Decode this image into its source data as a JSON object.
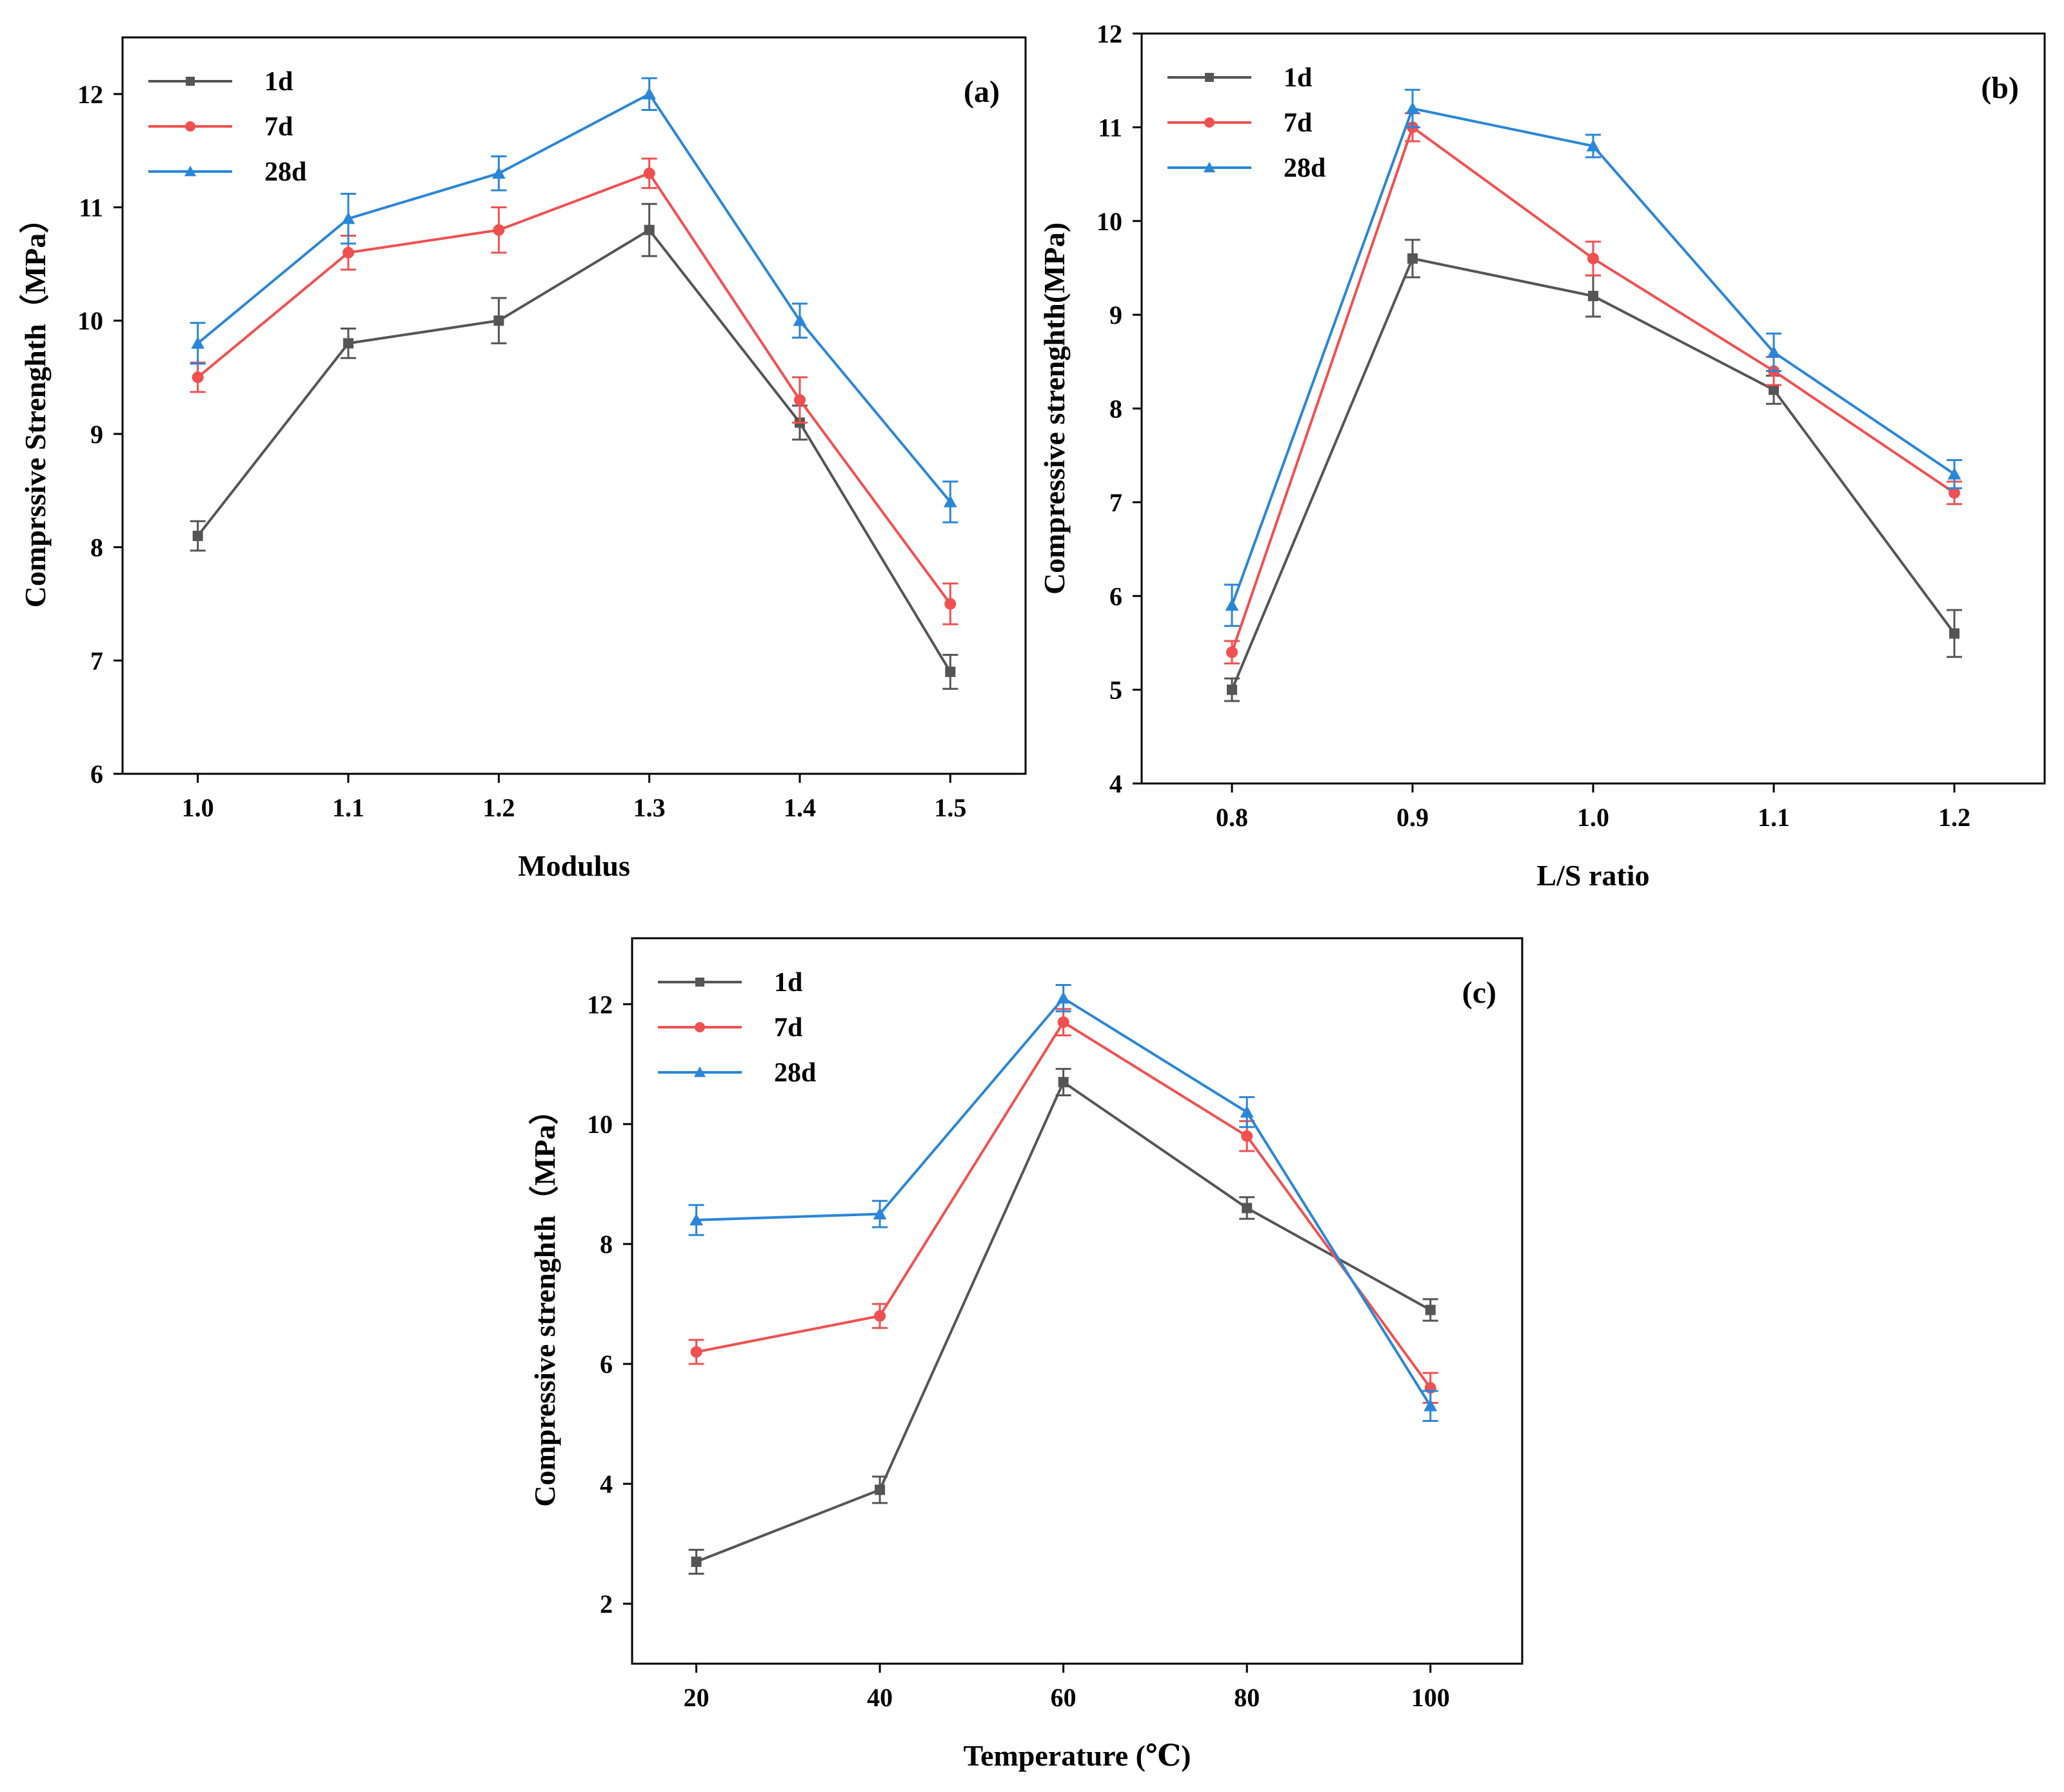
{
  "chart_data": [
    {
      "id": "a",
      "type": "line",
      "panel_label": "(a)",
      "xlabel": "Modulus",
      "ylabel": "Comprssive Strenghth（MPa）",
      "x": [
        1.0,
        1.1,
        1.2,
        1.3,
        1.4,
        1.5
      ],
      "x_tick_labels": [
        "1.0",
        "1.1",
        "1.2",
        "1.3",
        "1.4",
        "1.5"
      ],
      "xlim": [
        0.95,
        1.55
      ],
      "ylim": [
        6,
        12.5
      ],
      "y_ticks": [
        6,
        7,
        8,
        9,
        10,
        11,
        12
      ],
      "legend_position": "top-left",
      "series": [
        {
          "name": "1d",
          "color": "#555555",
          "marker": "square",
          "values": [
            8.1,
            9.8,
            10.0,
            10.8,
            9.1,
            6.9
          ],
          "errors": [
            0.13,
            0.13,
            0.2,
            0.23,
            0.15,
            0.15
          ]
        },
        {
          "name": "7d",
          "color": "#f05050",
          "marker": "circle",
          "values": [
            9.5,
            10.6,
            10.8,
            11.3,
            9.3,
            7.5
          ],
          "errors": [
            0.13,
            0.15,
            0.2,
            0.13,
            0.2,
            0.18
          ]
        },
        {
          "name": "28d",
          "color": "#2a86d8",
          "marker": "triangle",
          "values": [
            9.8,
            10.9,
            11.3,
            12.0,
            10.0,
            8.4
          ],
          "errors": [
            0.18,
            0.22,
            0.15,
            0.14,
            0.15,
            0.18
          ]
        }
      ]
    },
    {
      "id": "b",
      "type": "line",
      "panel_label": "(b)",
      "xlabel": "L/S ratio",
      "ylabel": "Compressive strenghth(MPa)",
      "x": [
        0.8,
        0.9,
        1.0,
        1.1,
        1.2
      ],
      "x_tick_labels": [
        "0.8",
        "0.9",
        "1.0",
        "1.1",
        "1.2"
      ],
      "xlim": [
        0.75,
        1.25
      ],
      "ylim": [
        4,
        12
      ],
      "y_ticks": [
        4,
        5,
        6,
        7,
        8,
        9,
        10,
        11,
        12
      ],
      "legend_position": "top-left",
      "series": [
        {
          "name": "1d",
          "color": "#555555",
          "marker": "square",
          "values": [
            5.0,
            9.6,
            9.2,
            8.2,
            5.6
          ],
          "errors": [
            0.12,
            0.2,
            0.22,
            0.15,
            0.25
          ]
        },
        {
          "name": "7d",
          "color": "#f05050",
          "marker": "circle",
          "values": [
            5.4,
            11.0,
            9.6,
            8.4,
            7.1
          ],
          "errors": [
            0.12,
            0.15,
            0.18,
            0.15,
            0.12
          ]
        },
        {
          "name": "28d",
          "color": "#2a86d8",
          "marker": "triangle",
          "values": [
            5.9,
            11.2,
            10.8,
            8.6,
            7.3
          ],
          "errors": [
            0.22,
            0.2,
            0.12,
            0.2,
            0.15
          ]
        }
      ]
    },
    {
      "id": "c",
      "type": "line",
      "panel_label": "(c)",
      "xlabel": "Temperature (℃)",
      "ylabel": "Compressive strenghth（MPa）",
      "x": [
        20,
        40,
        60,
        80,
        100
      ],
      "x_tick_labels": [
        "20",
        "40",
        "60",
        "80",
        "100"
      ],
      "xlim": [
        13,
        110
      ],
      "ylim": [
        1,
        13.1
      ],
      "y_ticks": [
        2,
        4,
        6,
        8,
        10,
        12
      ],
      "legend_position": "top-left",
      "series": [
        {
          "name": "1d",
          "color": "#555555",
          "marker": "square",
          "values": [
            2.7,
            3.9,
            10.7,
            8.6,
            6.9
          ],
          "errors": [
            0.2,
            0.22,
            0.22,
            0.18,
            0.18
          ]
        },
        {
          "name": "7d",
          "color": "#f05050",
          "marker": "circle",
          "values": [
            6.2,
            6.8,
            11.7,
            9.8,
            5.6
          ],
          "errors": [
            0.2,
            0.2,
            0.22,
            0.25,
            0.25
          ]
        },
        {
          "name": "28d",
          "color": "#2a86d8",
          "marker": "triangle",
          "values": [
            8.4,
            8.5,
            12.1,
            10.2,
            5.3
          ],
          "errors": [
            0.25,
            0.22,
            0.22,
            0.25,
            0.25
          ]
        }
      ]
    }
  ]
}
